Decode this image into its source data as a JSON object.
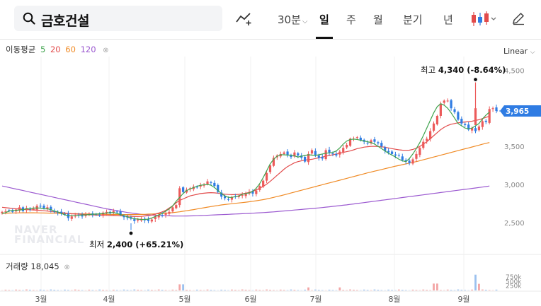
{
  "search": {
    "stock_name": "금호건설"
  },
  "toolbar": {
    "timeframes": [
      {
        "label": "30분",
        "active": false,
        "dropdown": true
      },
      {
        "label": "일",
        "active": true
      },
      {
        "label": "주",
        "active": false
      },
      {
        "label": "월",
        "active": false
      },
      {
        "label": "분기",
        "active": false
      },
      {
        "label": "년",
        "active": false
      }
    ],
    "chart_type_icon": "candlestick-icon",
    "indicator_icon": "trend-add-icon",
    "draw_icon": "pencil-icon"
  },
  "legend": {
    "ma_title": "이동평균",
    "ma_periods": [
      {
        "label": "5",
        "color": "#3fa34d"
      },
      {
        "label": "20",
        "color": "#e24b4b"
      },
      {
        "label": "60",
        "color": "#f08a24"
      },
      {
        "label": "120",
        "color": "#9b59d0"
      }
    ],
    "volume_title": "거래량",
    "volume_value": "18,045",
    "close_icon": "close-icon"
  },
  "scale": {
    "label": "Linear"
  },
  "annotations": {
    "high_text": "최고",
    "high_value": "4,340 (-8.64%)",
    "low_text": "최저",
    "low_value": "2,400 (+65.21%)"
  },
  "watermark": {
    "line1": "NAVER",
    "line2": "FINANCIAL"
  },
  "colors": {
    "up": "#ec5a5a",
    "down": "#2f7ce3",
    "ma5": "#3fa34d",
    "ma20": "#e24b4b",
    "ma60": "#f08a24",
    "ma120": "#9b59d0",
    "current_price_tag": "#2f7ce3"
  },
  "chart_data": {
    "type": "candlestick",
    "x_months": [
      "3월",
      "4월",
      "5월",
      "6월",
      "7월",
      "8월",
      "9월"
    ],
    "price_ticks": [
      "4,500",
      "4,000",
      "3,500",
      "3,000",
      "2,500"
    ],
    "price_tick_values": [
      4500,
      4000,
      3500,
      3000,
      2500
    ],
    "volume_ticks": [
      "750k",
      "500k",
      "250k"
    ],
    "volume_tick_values": [
      750000,
      500000,
      250000
    ],
    "current_price": 3965,
    "current_price_label": "3,965",
    "high": 4340,
    "low": 2400,
    "close_series": [
      2640,
      2650,
      2660,
      2640,
      2670,
      2700,
      2650,
      2690,
      2670,
      2680,
      2720,
      2710,
      2690,
      2700,
      2660,
      2640,
      2630,
      2620,
      2610,
      2560,
      2580,
      2590,
      2600,
      2580,
      2610,
      2620,
      2600,
      2610,
      2590,
      2630,
      2640,
      2620,
      2650,
      2640,
      2600,
      2570,
      2560,
      2550,
      2520,
      2540,
      2550,
      2530,
      2520,
      2540,
      2580,
      2600,
      2590,
      2620,
      2640,
      2700,
      2730,
      2950,
      2900,
      2930,
      2950,
      2970,
      2960,
      2990,
      3000,
      3040,
      3020,
      2980,
      2900,
      2840,
      2820,
      2800,
      2830,
      2840,
      2850,
      2860,
      2880,
      2900,
      2880,
      2920,
      2980,
      3050,
      3150,
      3250,
      3350,
      3380,
      3400,
      3420,
      3390,
      3360,
      3420,
      3380,
      3350,
      3300,
      3400,
      3450,
      3380,
      3350,
      3340,
      3450,
      3420,
      3400,
      3380,
      3430,
      3480,
      3520,
      3600,
      3600,
      3620,
      3580,
      3560,
      3540,
      3580,
      3560,
      3540,
      3500,
      3440,
      3420,
      3400,
      3380,
      3380,
      3320,
      3300,
      3280,
      3330,
      3400,
      3480,
      3560,
      3600,
      3700,
      3800,
      3900,
      4060,
      4100,
      4100,
      4000,
      3950,
      3850,
      3800,
      3780,
      3720,
      3740,
      3700,
      3760,
      3830,
      3820,
      3990,
      4000,
      3965
    ],
    "ma5": [
      2620,
      2630,
      2650,
      2660,
      2660,
      2665,
      2670,
      2680,
      2680,
      2690,
      2690,
      2690,
      2680,
      2680,
      2670,
      2650,
      2640,
      2620,
      2600,
      2590,
      2590,
      2590,
      2595,
      2600,
      2600,
      2605,
      2610,
      2610,
      2615,
      2620,
      2625,
      2630,
      2630,
      2620,
      2605,
      2590,
      2575,
      2560,
      2550,
      2545,
      2540,
      2540,
      2545,
      2560,
      2580,
      2600,
      2620,
      2650,
      2680,
      2720,
      2780,
      2830,
      2880,
      2920,
      2940,
      2960,
      2975,
      2990,
      2995,
      3000,
      2990,
      2960,
      2920,
      2880,
      2850,
      2830,
      2830,
      2840,
      2850,
      2870,
      2880,
      2890,
      2910,
      2950,
      3010,
      3090,
      3180,
      3270,
      3330,
      3370,
      3390,
      3390,
      3385,
      3385,
      3375,
      3360,
      3370,
      3380,
      3390,
      3385,
      3380,
      3390,
      3400,
      3410,
      3415,
      3420,
      3440,
      3480,
      3530,
      3570,
      3590,
      3595,
      3590,
      3580,
      3570,
      3560,
      3550,
      3530,
      3500,
      3470,
      3440,
      3410,
      3385,
      3360,
      3330,
      3310,
      3300,
      3340,
      3400,
      3470,
      3550,
      3640,
      3740,
      3840,
      3940,
      4020,
      4060,
      4040,
      4000,
      3940,
      3870,
      3800,
      3770,
      3740,
      3730,
      3740,
      3770,
      3800,
      3860,
      3910,
      3950
    ],
    "ma20": [
      2700,
      2695,
      2690,
      2685,
      2680,
      2680,
      2675,
      2670,
      2668,
      2665,
      2662,
      2660,
      2655,
      2650,
      2645,
      2640,
      2635,
      2630,
      2625,
      2620,
      2615,
      2612,
      2610,
      2608,
      2605,
      2602,
      2600,
      2598,
      2596,
      2595,
      2594,
      2593,
      2592,
      2590,
      2588,
      2586,
      2584,
      2582,
      2580,
      2580,
      2582,
      2585,
      2590,
      2598,
      2610,
      2625,
      2640,
      2660,
      2690,
      2720,
      2760,
      2790,
      2810,
      2830,
      2850,
      2860,
      2870,
      2880,
      2885,
      2890,
      2892,
      2890,
      2885,
      2878,
      2872,
      2868,
      2866,
      2866,
      2870,
      2876,
      2885,
      2896,
      2910,
      2928,
      2950,
      2975,
      3005,
      3040,
      3080,
      3120,
      3160,
      3200,
      3235,
      3260,
      3285,
      3300,
      3310,
      3320,
      3325,
      3330,
      3340,
      3350,
      3360,
      3370,
      3380,
      3390,
      3400,
      3410,
      3420,
      3430,
      3440,
      3455,
      3470,
      3480,
      3490,
      3495,
      3500,
      3500,
      3498,
      3494,
      3488,
      3480,
      3470,
      3462,
      3455,
      3450,
      3448,
      3450,
      3460,
      3475,
      3500,
      3530,
      3560,
      3600,
      3640,
      3680,
      3720,
      3750,
      3775,
      3790,
      3800,
      3810,
      3815,
      3820,
      3825,
      3830,
      3840,
      3850,
      3865,
      3880,
      3895
    ],
    "ma60": [
      2620,
      2622,
      2624,
      2625,
      2626,
      2627,
      2628,
      2628,
      2628,
      2628,
      2627,
      2626,
      2625,
      2624,
      2623,
      2622,
      2621,
      2620,
      2619,
      2618,
      2617,
      2616,
      2615,
      2614,
      2613,
      2612,
      2611,
      2610,
      2609,
      2608,
      2607,
      2606,
      2605,
      2605,
      2605,
      2605,
      2605,
      2605,
      2605,
      2606,
      2607,
      2608,
      2610,
      2612,
      2614,
      2616,
      2619,
      2622,
      2626,
      2630,
      2635,
      2641,
      2648,
      2655,
      2662,
      2670,
      2678,
      2686,
      2694,
      2702,
      2710,
      2717,
      2724,
      2731,
      2737,
      2742,
      2747,
      2752,
      2757,
      2762,
      2767,
      2773,
      2779,
      2786,
      2793,
      2801,
      2810,
      2820,
      2830,
      2841,
      2852,
      2864,
      2876,
      2888,
      2900,
      2912,
      2924,
      2936,
      2948,
      2960,
      2972,
      2984,
      2996,
      3008,
      3020,
      3032,
      3044,
      3056,
      3068,
      3080,
      3092,
      3104,
      3116,
      3128,
      3140,
      3152,
      3163,
      3174,
      3185,
      3196,
      3207,
      3218,
      3229,
      3240,
      3250,
      3260,
      3270,
      3280,
      3290,
      3300,
      3312,
      3324,
      3336,
      3348,
      3360,
      3372,
      3384,
      3396,
      3408,
      3420,
      3432,
      3444,
      3456,
      3468,
      3480,
      3492,
      3504,
      3516,
      3528,
      3540,
      3550
    ],
    "ma120": [
      2980,
      2970,
      2960,
      2950,
      2940,
      2930,
      2920,
      2910,
      2900,
      2890,
      2880,
      2870,
      2860,
      2850,
      2840,
      2830,
      2820,
      2810,
      2800,
      2790,
      2780,
      2770,
      2760,
      2750,
      2740,
      2730,
      2720,
      2710,
      2700,
      2690,
      2680,
      2672,
      2664,
      2656,
      2648,
      2640,
      2632,
      2626,
      2620,
      2614,
      2608,
      2604,
      2600,
      2598,
      2596,
      2594,
      2592,
      2590,
      2588,
      2586,
      2585,
      2585,
      2585,
      2586,
      2587,
      2588,
      2590,
      2592,
      2594,
      2596,
      2598,
      2600,
      2602,
      2604,
      2606,
      2608,
      2610,
      2612,
      2614,
      2616,
      2618,
      2620,
      2622,
      2625,
      2628,
      2631,
      2634,
      2637,
      2640,
      2644,
      2648,
      2652,
      2656,
      2660,
      2664,
      2668,
      2672,
      2676,
      2680,
      2684,
      2688,
      2692,
      2697,
      2702,
      2707,
      2712,
      2717,
      2722,
      2727,
      2732,
      2738,
      2744,
      2750,
      2756,
      2762,
      2768,
      2774,
      2780,
      2786,
      2792,
      2798,
      2804,
      2810,
      2816,
      2822,
      2828,
      2834,
      2840,
      2846,
      2852,
      2858,
      2864,
      2870,
      2876,
      2882,
      2888,
      2894,
      2900,
      2906,
      2912,
      2918,
      2924,
      2930,
      2936,
      2942,
      2948,
      2954,
      2960,
      2966,
      2972,
      2980
    ]
  }
}
